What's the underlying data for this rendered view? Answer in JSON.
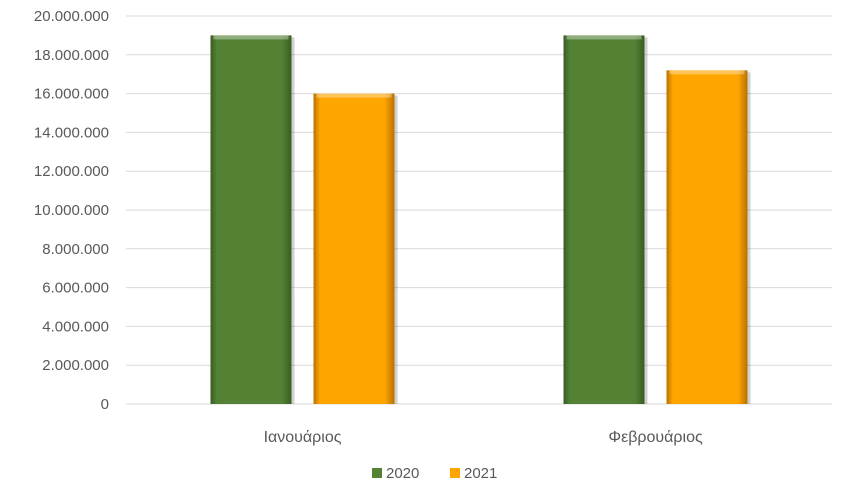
{
  "chart_data": {
    "type": "bar",
    "title": "",
    "xlabel": "",
    "ylabel": "",
    "categories": [
      "Ιανουάριος",
      "Φεβρουάριος"
    ],
    "series": [
      {
        "name": "2020",
        "values": [
          19000000,
          19000000
        ]
      },
      {
        "name": "2021",
        "values": [
          16000000,
          17200000
        ]
      }
    ],
    "ylim": [
      0,
      20000000
    ],
    "y_ticks": [
      0,
      2000000,
      4000000,
      6000000,
      8000000,
      10000000,
      12000000,
      14000000,
      16000000,
      18000000,
      20000000
    ],
    "y_tick_labels": [
      "0",
      "2.000.000",
      "4.000.000",
      "6.000.000",
      "8.000.000",
      "10.000.000",
      "12.000.000",
      "14.000.000",
      "16.000.000",
      "18.000.000",
      "20.000.000"
    ],
    "grid": true,
    "legend_position": "bottom",
    "colors": [
      "#548235",
      "#ffa500"
    ],
    "colors_dark": [
      "#3a5c24",
      "#b87200"
    ]
  }
}
